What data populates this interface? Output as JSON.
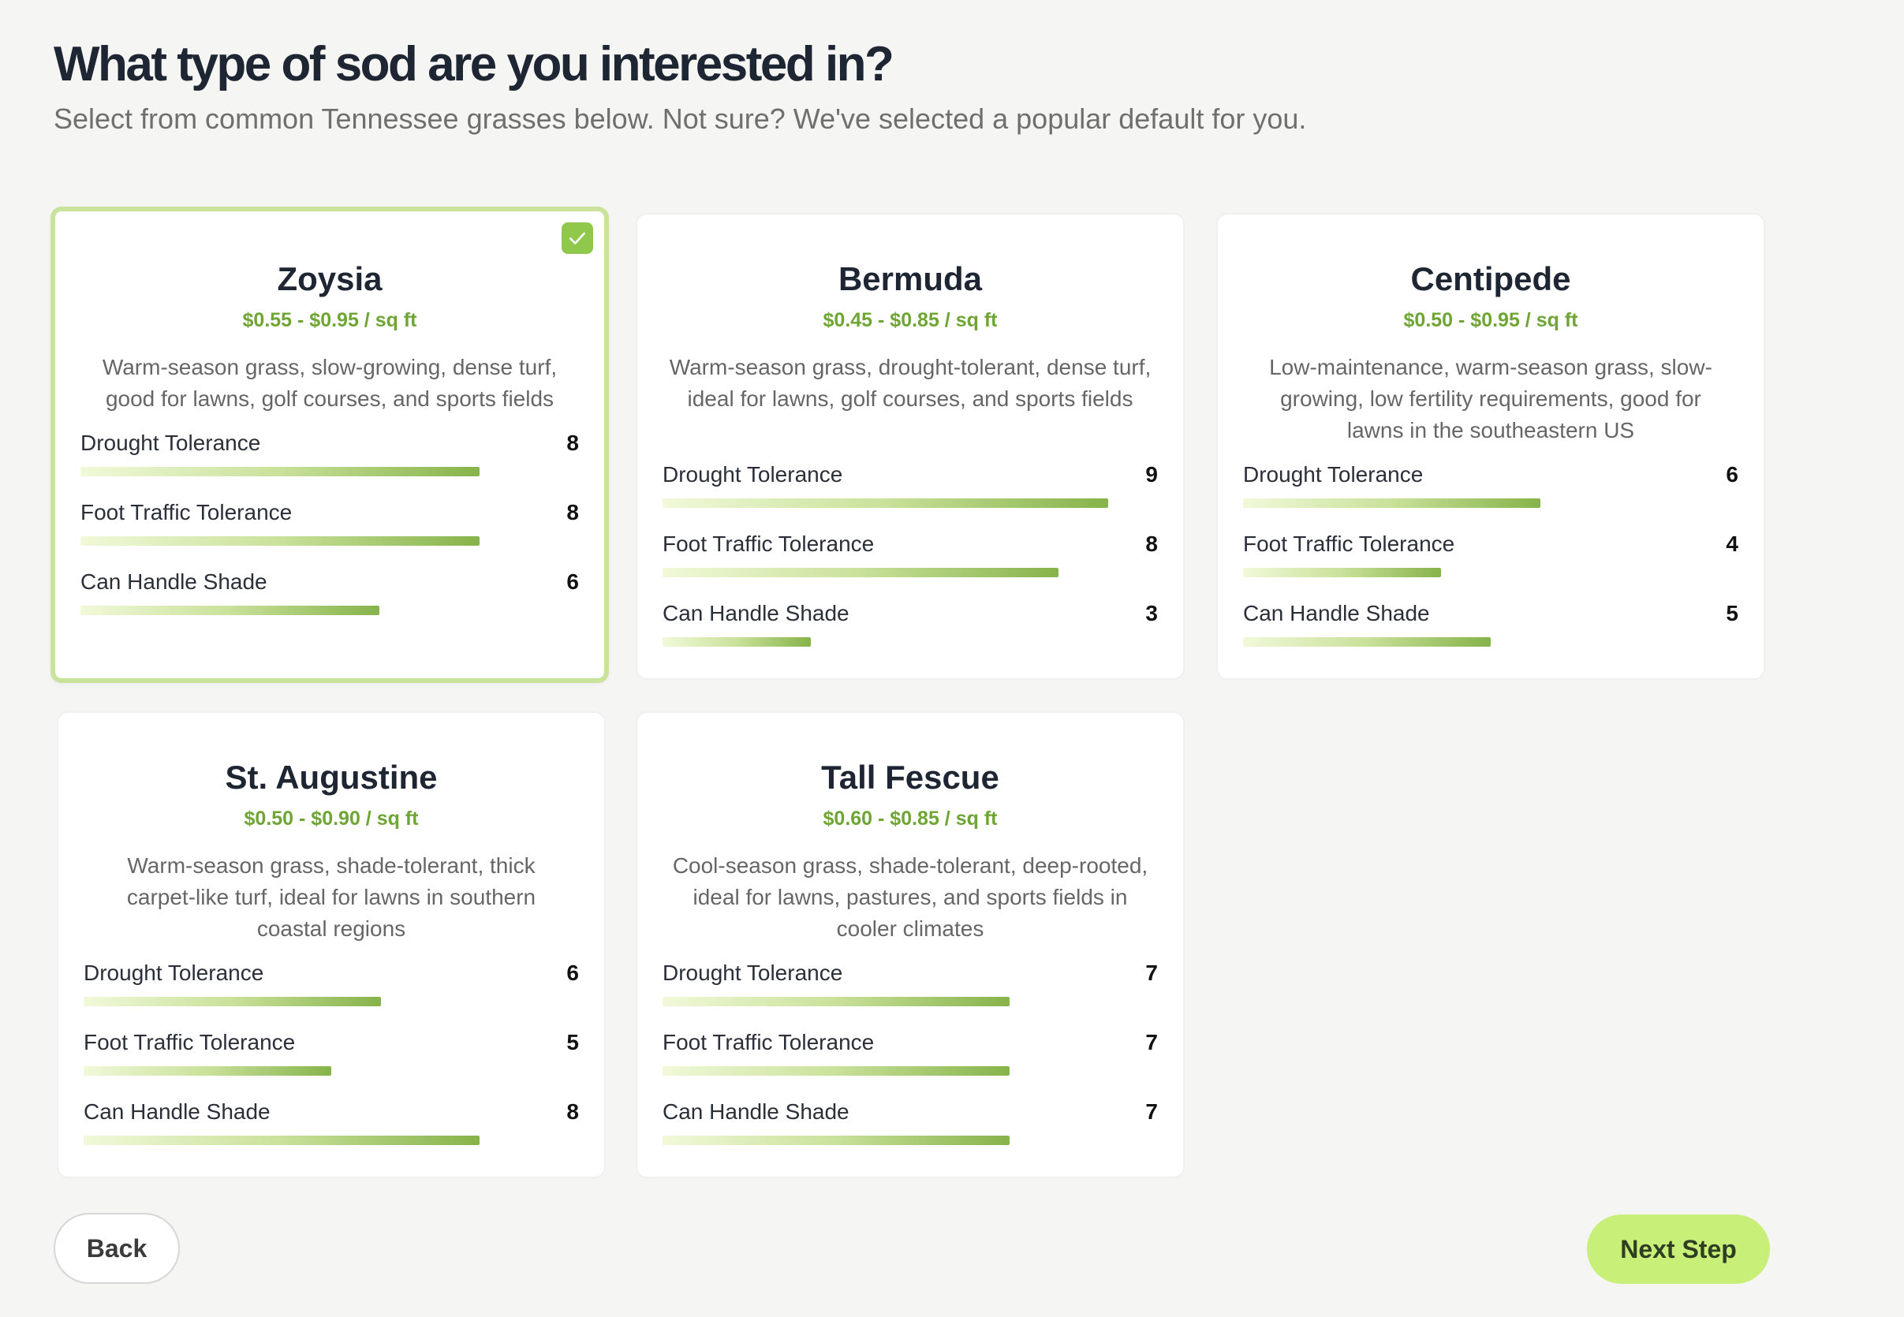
{
  "header": {
    "title": "What type of sod are you interested in?",
    "subtitle": "Select from common Tennessee grasses below. Not sure? We've selected a popular default for you."
  },
  "max_score": 10,
  "selected_card": 0,
  "colors": {
    "accent_price": "#6fa534",
    "selected_border": "#c9e39b",
    "check_badge": "#8fc84a",
    "next_button": "#c8ef78"
  },
  "icons": {
    "selected": "check-icon"
  },
  "cards": [
    {
      "name": "Zoysia",
      "price": "$0.55 - $0.95 / sq ft",
      "description": "Warm-season grass, slow-growing, dense turf, good for lawns, golf courses, and sports fields",
      "metrics": [
        {
          "label": "Drought Tolerance",
          "value": 8
        },
        {
          "label": "Foot Traffic Tolerance",
          "value": 8
        },
        {
          "label": "Can Handle Shade",
          "value": 6
        }
      ]
    },
    {
      "name": "Bermuda",
      "price": "$0.45 - $0.85 / sq ft",
      "description": "Warm-season grass, drought-tolerant, dense turf, ideal for lawns, golf courses, and sports fields",
      "metrics": [
        {
          "label": "Drought Tolerance",
          "value": 9
        },
        {
          "label": "Foot Traffic Tolerance",
          "value": 8
        },
        {
          "label": "Can Handle Shade",
          "value": 3
        }
      ]
    },
    {
      "name": "Centipede",
      "price": "$0.50 - $0.95 / sq ft",
      "description": "Low-maintenance, warm-season grass, slow-growing, low fertility requirements, good for lawns in the southeastern US",
      "metrics": [
        {
          "label": "Drought Tolerance",
          "value": 6
        },
        {
          "label": "Foot Traffic Tolerance",
          "value": 4
        },
        {
          "label": "Can Handle Shade",
          "value": 5
        }
      ]
    },
    {
      "name": "St. Augustine",
      "price": "$0.50 - $0.90 / sq ft",
      "description": "Warm-season grass, shade-tolerant, thick carpet-like turf, ideal for lawns in southern coastal regions",
      "metrics": [
        {
          "label": "Drought Tolerance",
          "value": 6
        },
        {
          "label": "Foot Traffic Tolerance",
          "value": 5
        },
        {
          "label": "Can Handle Shade",
          "value": 8
        }
      ]
    },
    {
      "name": "Tall Fescue",
      "price": "$0.60 - $0.85 / sq ft",
      "description": "Cool-season grass, shade-tolerant, deep-rooted, ideal for lawns, pastures, and sports fields in cooler climates",
      "metrics": [
        {
          "label": "Drought Tolerance",
          "value": 7
        },
        {
          "label": "Foot Traffic Tolerance",
          "value": 7
        },
        {
          "label": "Can Handle Shade",
          "value": 7
        }
      ]
    }
  ],
  "footer": {
    "back_label": "Back",
    "next_label": "Next Step"
  }
}
